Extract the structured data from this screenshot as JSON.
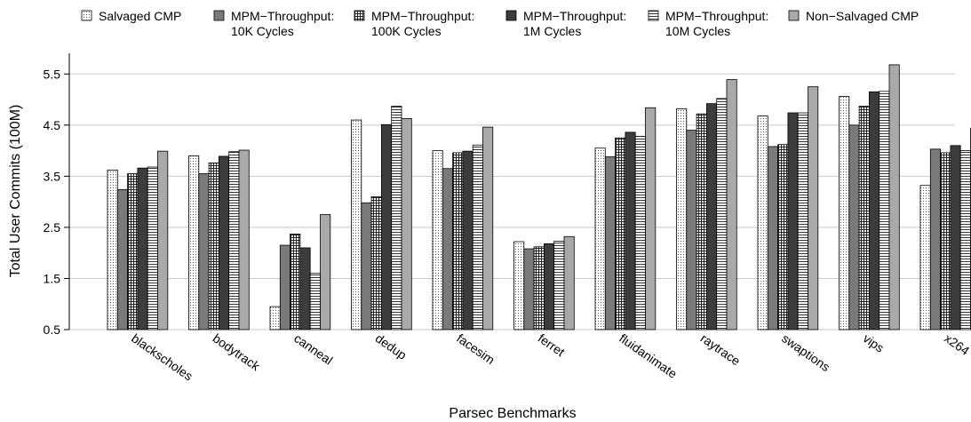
{
  "chart_data": {
    "type": "bar",
    "title": "",
    "xlabel": "Parsec Benchmarks",
    "ylabel": "Total User Commits (100M)",
    "ylim": [
      0.5,
      6.0
    ],
    "yticks": [
      0.5,
      1.5,
      2.5,
      3.5,
      4.5,
      5.5
    ],
    "grid": true,
    "legend_position": "top",
    "categories": [
      "blackscholes",
      "bodytrack",
      "canneal",
      "dedup",
      "facesim",
      "ferret",
      "fluidanimate",
      "raytrace",
      "swaptions",
      "vips",
      "x264"
    ],
    "series": [
      {
        "name": "Salvaged CMP",
        "pattern": "dots",
        "values": [
          3.62,
          3.9,
          0.95,
          4.6,
          4.0,
          2.22,
          4.05,
          4.82,
          4.68,
          5.06,
          3.32
        ]
      },
      {
        "name": "MPM−Throughput: 10K Cycles",
        "pattern": "solid-dark-gray",
        "values": [
          3.24,
          3.55,
          2.15,
          2.98,
          3.65,
          2.08,
          3.88,
          4.4,
          4.08,
          4.5,
          4.03
        ]
      },
      {
        "name": "MPM−Throughput: 100K Cycles",
        "pattern": "grid",
        "values": [
          3.55,
          3.76,
          2.37,
          3.1,
          3.96,
          2.12,
          4.25,
          4.72,
          4.12,
          4.87,
          3.96
        ]
      },
      {
        "name": "MPM−Throughput: 1M Cycles",
        "pattern": "solid-black",
        "values": [
          3.66,
          3.89,
          2.1,
          4.51,
          3.99,
          2.18,
          4.36,
          4.92,
          4.74,
          5.15,
          4.1
        ]
      },
      {
        "name": "MPM−Throughput: 10M Cycles",
        "pattern": "horizontal-lines",
        "values": [
          3.68,
          3.98,
          1.6,
          4.87,
          4.11,
          2.23,
          4.28,
          5.02,
          4.74,
          5.16,
          4.0
        ]
      },
      {
        "name": "Non−Salvaged CMP",
        "pattern": "solid-light-gray",
        "values": [
          3.99,
          4.01,
          2.75,
          4.63,
          4.46,
          2.32,
          4.84,
          5.39,
          5.25,
          5.68,
          4.44
        ]
      }
    ],
    "legend_labels": [
      [
        "Salvaged CMP"
      ],
      [
        "MPM−Throughput:",
        "10K Cycles"
      ],
      [
        "MPM−Throughput:",
        "100K Cycles"
      ],
      [
        "MPM−Throughput:",
        "1M Cycles"
      ],
      [
        "MPM−Throughput:",
        "10M Cycles"
      ],
      [
        "Non−Salvaged CMP"
      ]
    ]
  }
}
